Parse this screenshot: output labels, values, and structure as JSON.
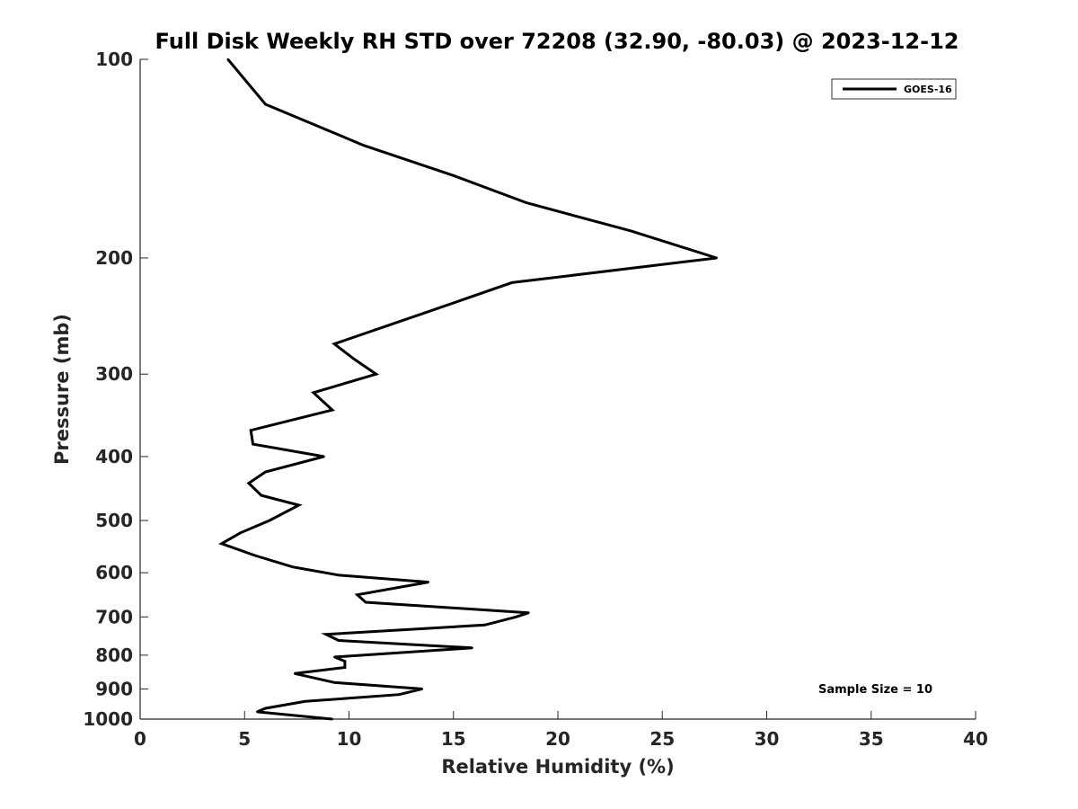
{
  "chart_data": {
    "type": "line",
    "title": "Full Disk Weekly RH STD over 72208 (32.90, -80.03) @ 2023-12-12",
    "xlabel": "Relative Humidity (%)",
    "ylabel": "Pressure (mb)",
    "xlim": [
      0,
      40
    ],
    "ylim": [
      100,
      1000
    ],
    "y_scale": "log",
    "y_reversed": true,
    "grid": false,
    "legend_position": "top-right",
    "xticks": [
      0,
      5,
      10,
      15,
      20,
      25,
      30,
      35,
      40
    ],
    "yticks": [
      100,
      200,
      300,
      400,
      500,
      600,
      700,
      800,
      900,
      1000
    ],
    "series": [
      {
        "name": "GOES-16",
        "color": "#000000",
        "points": [
          [
            4.2,
            100
          ],
          [
            6.0,
            117
          ],
          [
            10.7,
            135
          ],
          [
            15.0,
            150
          ],
          [
            18.5,
            165
          ],
          [
            23.5,
            182
          ],
          [
            27.6,
            200
          ],
          [
            17.8,
            218
          ],
          [
            14.0,
            240
          ],
          [
            9.3,
            270
          ],
          [
            10.2,
            284
          ],
          [
            11.3,
            300
          ],
          [
            8.3,
            320
          ],
          [
            9.2,
            340
          ],
          [
            5.3,
            365
          ],
          [
            5.4,
            383
          ],
          [
            8.8,
            400
          ],
          [
            6.0,
            422
          ],
          [
            5.2,
            439
          ],
          [
            5.8,
            458
          ],
          [
            7.6,
            474
          ],
          [
            6.2,
            500
          ],
          [
            4.8,
            522
          ],
          [
            3.9,
            542
          ],
          [
            5.5,
            565
          ],
          [
            7.3,
            588
          ],
          [
            9.5,
            605
          ],
          [
            13.8,
            620
          ],
          [
            10.4,
            648
          ],
          [
            10.8,
            665
          ],
          [
            18.6,
            690
          ],
          [
            18.0,
            700
          ],
          [
            16.5,
            720
          ],
          [
            8.9,
            744
          ],
          [
            9.5,
            760
          ],
          [
            15.9,
            780
          ],
          [
            9.3,
            805
          ],
          [
            9.8,
            817
          ],
          [
            9.8,
            835
          ],
          [
            7.4,
            853
          ],
          [
            9.3,
            880
          ],
          [
            13.5,
            900
          ],
          [
            12.4,
            918
          ],
          [
            7.9,
            940
          ],
          [
            6.0,
            963
          ],
          [
            5.6,
            975
          ],
          [
            9.2,
            1000
          ]
        ]
      }
    ],
    "annotations": [
      "Sample Size = 10"
    ]
  }
}
